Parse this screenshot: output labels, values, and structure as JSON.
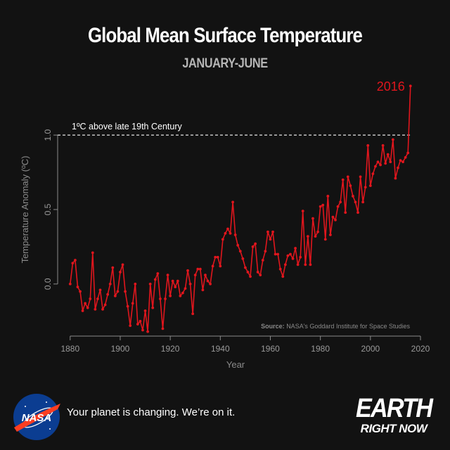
{
  "header": {
    "title": "Global Mean Surface Temperature",
    "subtitle": "JANUARY-JUNE"
  },
  "chart_data": {
    "type": "line",
    "xlabel": "Year",
    "ylabel": "Temperature Anomaly (ºC)",
    "xlim": [
      1875,
      2020
    ],
    "ylim": [
      -0.35,
      1.35
    ],
    "xticks": [
      "1880",
      "1900",
      "1920",
      "1940",
      "1960",
      "1980",
      "2000",
      "2020"
    ],
    "yticks": [
      "0.0",
      "0.5",
      "1.0"
    ],
    "grid": false,
    "reference_line": {
      "y": 1.0,
      "label": "1ºC above late 19th Century"
    },
    "annotation": {
      "x": 2016,
      "y": 1.33,
      "text": "2016"
    },
    "source_prefix": "Source:",
    "source_text": "NASA's Goddard Institute for Space Studies",
    "line_color": "#e0161d",
    "series": [
      {
        "x": [
          1880,
          1881,
          1882,
          1883,
          1884,
          1885,
          1886,
          1887,
          1888,
          1889,
          1890,
          1891,
          1892,
          1893,
          1894,
          1895,
          1896,
          1897,
          1898,
          1899,
          1900,
          1901,
          1902,
          1903,
          1904,
          1905,
          1906,
          1907,
          1908,
          1909,
          1910,
          1911,
          1912,
          1913,
          1914,
          1915,
          1916,
          1917,
          1918,
          1919,
          1920,
          1921,
          1922,
          1923,
          1924,
          1925,
          1926,
          1927,
          1928,
          1929,
          1930,
          1931,
          1932,
          1933,
          1934,
          1935,
          1936,
          1937,
          1938,
          1939,
          1940,
          1941,
          1942,
          1943,
          1944,
          1945,
          1946,
          1947,
          1948,
          1949,
          1950,
          1951,
          1952,
          1953,
          1954,
          1955,
          1956,
          1957,
          1958,
          1959,
          1960,
          1961,
          1962,
          1963,
          1964,
          1965,
          1966,
          1967,
          1968,
          1969,
          1970,
          1971,
          1972,
          1973,
          1974,
          1975,
          1976,
          1977,
          1978,
          1979,
          1980,
          1981,
          1982,
          1983,
          1984,
          1985,
          1986,
          1987,
          1988,
          1989,
          1990,
          1991,
          1992,
          1993,
          1994,
          1995,
          1996,
          1997,
          1998,
          1999,
          2000,
          2001,
          2002,
          2003,
          2004,
          2005,
          2006,
          2007,
          2008,
          2009,
          2010,
          2011,
          2012,
          2013,
          2014,
          2015,
          2016
        ],
        "y": [
          0.0,
          0.14,
          0.16,
          -0.02,
          -0.05,
          -0.18,
          -0.13,
          -0.16,
          -0.1,
          0.21,
          -0.17,
          -0.1,
          -0.04,
          -0.17,
          -0.14,
          -0.07,
          0.0,
          0.11,
          -0.08,
          -0.05,
          0.08,
          0.13,
          -0.05,
          -0.15,
          -0.28,
          -0.13,
          0.0,
          -0.27,
          -0.25,
          -0.31,
          -0.18,
          -0.32,
          0.0,
          -0.16,
          0.03,
          0.07,
          -0.1,
          -0.3,
          -0.1,
          0.06,
          -0.08,
          0.02,
          -0.02,
          0.02,
          -0.08,
          -0.06,
          -0.03,
          0.09,
          0.0,
          -0.2,
          0.06,
          0.1,
          0.1,
          -0.04,
          0.06,
          0.02,
          0.0,
          0.12,
          0.18,
          0.18,
          0.12,
          0.3,
          0.34,
          0.37,
          0.34,
          0.55,
          0.33,
          0.26,
          0.22,
          0.17,
          0.11,
          0.08,
          0.05,
          0.25,
          0.27,
          0.08,
          0.06,
          0.16,
          0.22,
          0.35,
          0.3,
          0.35,
          0.2,
          0.2,
          0.1,
          0.05,
          0.13,
          0.19,
          0.2,
          0.17,
          0.24,
          0.13,
          0.18,
          0.49,
          0.13,
          0.32,
          0.13,
          0.44,
          0.32,
          0.35,
          0.52,
          0.53,
          0.3,
          0.59,
          0.33,
          0.45,
          0.43,
          0.52,
          0.55,
          0.7,
          0.48,
          0.72,
          0.66,
          0.59,
          0.55,
          0.48,
          0.72,
          0.55,
          0.65,
          0.93,
          0.66,
          0.74,
          0.79,
          0.82,
          0.8,
          0.93,
          0.81,
          0.87,
          0.82,
          0.97,
          0.71,
          0.78,
          0.83,
          0.82,
          0.85,
          0.88,
          1.33
        ]
      }
    ]
  },
  "footer": {
    "tagline": "Your planet is changing. We’re on it.",
    "nasa_logo_text": "NASA",
    "brand_line1": "EARTH",
    "brand_line2": "RIGHT NOW"
  }
}
